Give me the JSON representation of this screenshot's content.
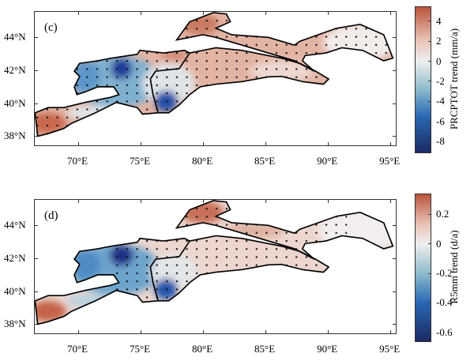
{
  "map_extent": {
    "lon": [
      66.46,
      95.5
    ],
    "lat": [
      37.4,
      45.6
    ]
  },
  "lon_ticks": [
    "70°E",
    "75°E",
    "80°E",
    "85°E",
    "90°E",
    "95°E"
  ],
  "lon_values": [
    70,
    75,
    80,
    85,
    90,
    95
  ],
  "lat_ticks": [
    "44°N",
    "42°N",
    "40°N",
    "38°N"
  ],
  "lat_values": [
    44,
    42,
    40,
    38
  ],
  "panels": [
    {
      "label": "(c)",
      "colorbar_label": "PRCPTOT trend (mm/a)",
      "range": [
        -9.2,
        5.5
      ],
      "ticks": [
        "4",
        "2",
        "0",
        "-2",
        "-4",
        "-6",
        "-8"
      ],
      "tick_values": [
        4,
        2,
        0,
        -2,
        -4,
        -6,
        -8
      ]
    },
    {
      "label": "(d)",
      "colorbar_label": "R5mm trend (d/a)",
      "range": [
        -0.665,
        0.34
      ],
      "ticks": [
        "0.2",
        "0",
        "-0.2",
        "-0.4",
        "-0.6"
      ],
      "tick_values": [
        0.2,
        0,
        -0.2,
        -0.4,
        -0.6
      ]
    }
  ],
  "colors": {
    "positive": "#b9543b",
    "neutral": "#eeeeee",
    "negative": "#1b2a63"
  }
}
